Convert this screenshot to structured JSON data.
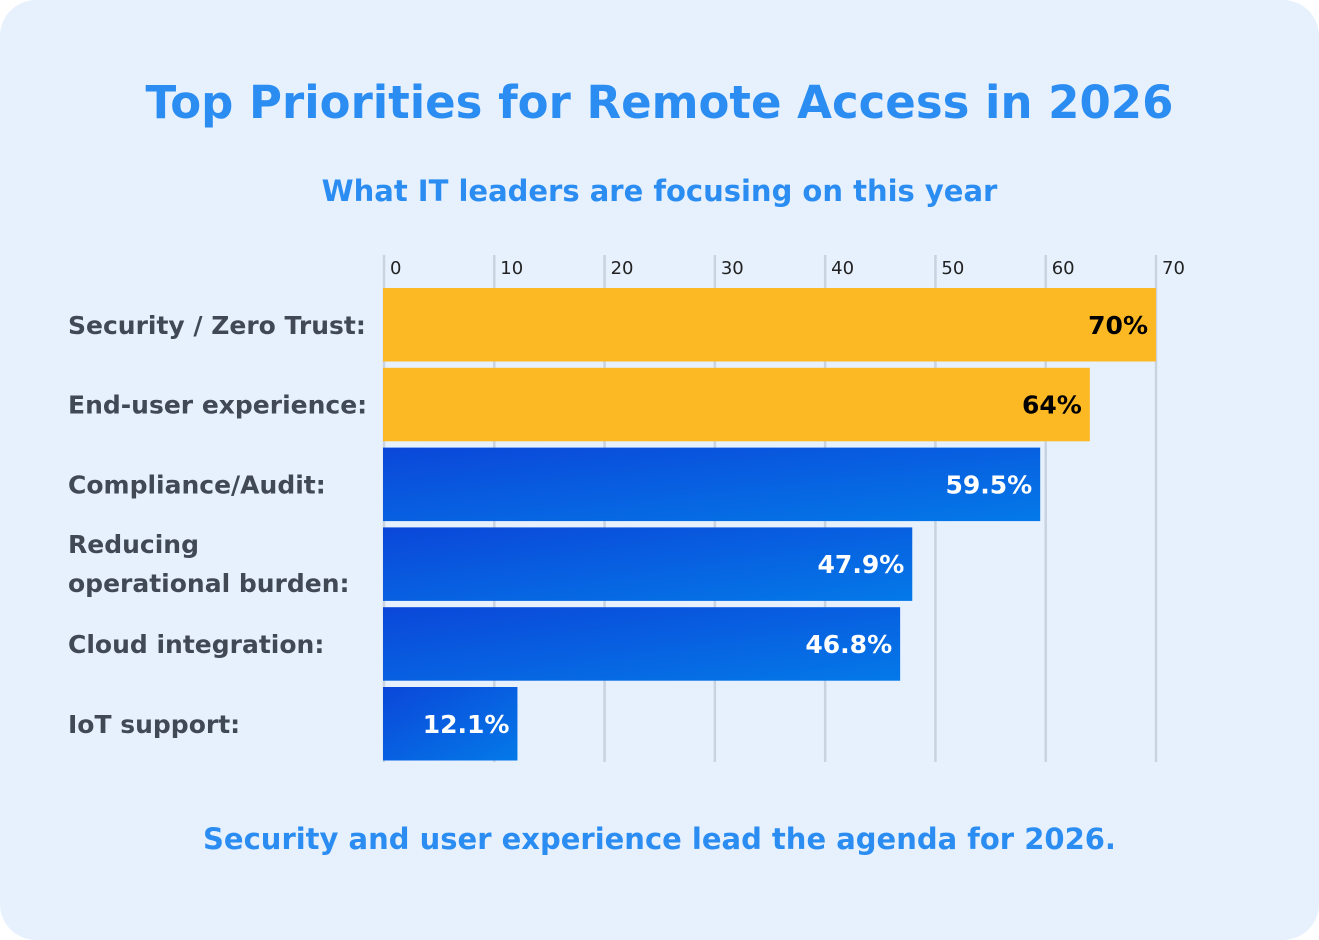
{
  "chart_data": {
    "type": "bar",
    "orientation": "horizontal",
    "title": "Top Priorities for Remote Access in 2026",
    "subtitle": "What IT leaders are focusing on this year",
    "footer": "Security and user experience lead the agenda for 2026.",
    "categories": [
      "Security / Zero Trust:",
      "End-user experience:",
      "Compliance/Audit:",
      "Reducing operational burden:",
      "Cloud integration:",
      "IoT support:"
    ],
    "values": [
      70,
      64,
      59.5,
      47.9,
      46.8,
      12.1
    ],
    "value_labels": [
      "70%",
      "64%",
      "59.5%",
      "47.9%",
      "46.8%",
      "12.1%"
    ],
    "xlim": [
      0,
      70
    ],
    "xticks": [
      0,
      10,
      20,
      30,
      40,
      50,
      60,
      70
    ],
    "grid": true,
    "colors": {
      "highlight": "#fdb924",
      "highlight_label": "#000000",
      "gradient_start": "#0b47d9",
      "gradient_end": "#0479e8",
      "default_label": "#ffffff",
      "title": "#2b8cf2",
      "background": "#e6f1fd"
    },
    "highlighted": [
      true,
      true,
      false,
      false,
      false,
      false
    ]
  }
}
